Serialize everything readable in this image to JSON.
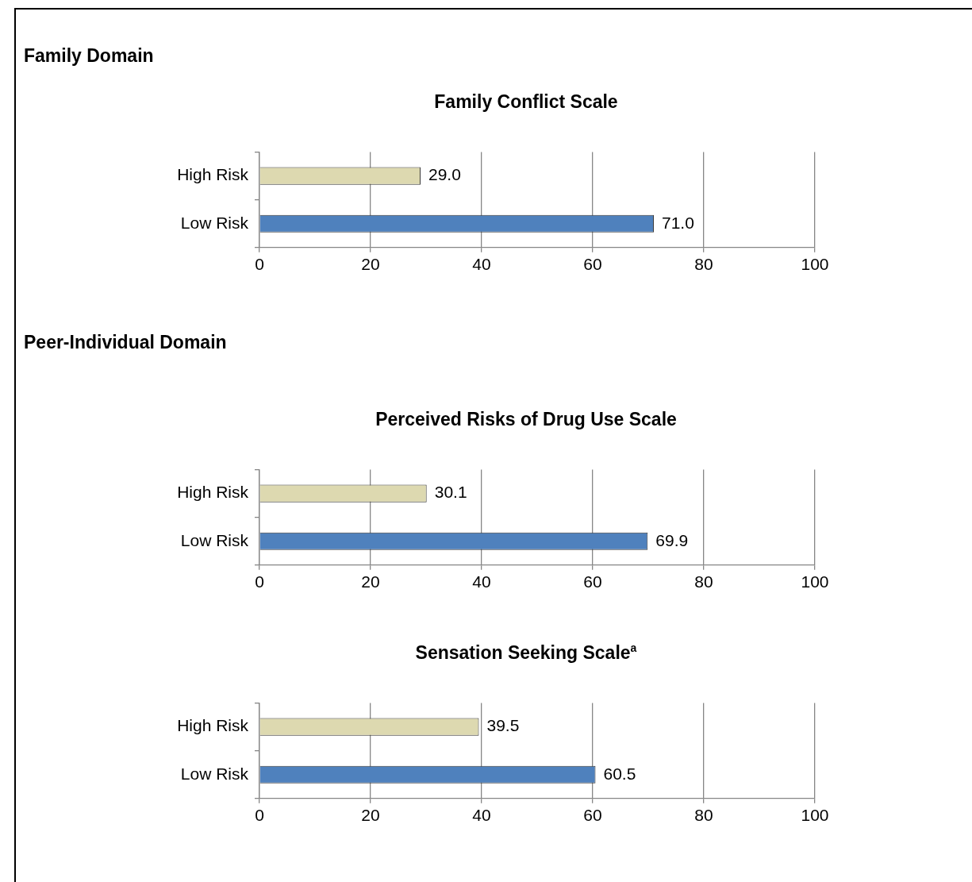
{
  "chart_data": [
    {
      "type": "bar",
      "orientation": "horizontal",
      "title": "Family Conflict Scale",
      "annotations": [
        "Family Domain"
      ],
      "categories": [
        "High Risk",
        "Low Risk"
      ],
      "values": [
        29.0,
        71.0
      ],
      "value_labels": [
        "29.0",
        "71.0"
      ],
      "colors": [
        "#ddd9b0",
        "#4f81bd"
      ],
      "xlim": [
        0,
        100
      ],
      "xticks": [
        0,
        20,
        40,
        60,
        80,
        100
      ],
      "grid": "x",
      "legend": false
    },
    {
      "type": "bar",
      "orientation": "horizontal",
      "title": "Perceived Risks of Drug Use Scale",
      "annotations": [
        "Peer-Individual Domain"
      ],
      "categories": [
        "High Risk",
        "Low Risk"
      ],
      "values": [
        30.1,
        69.9
      ],
      "value_labels": [
        "30.1",
        "69.9"
      ],
      "colors": [
        "#ddd9b0",
        "#4f81bd"
      ],
      "xlim": [
        0,
        100
      ],
      "xticks": [
        0,
        20,
        40,
        60,
        80,
        100
      ],
      "grid": "x",
      "legend": false
    },
    {
      "type": "bar",
      "orientation": "horizontal",
      "title": "Sensation Seeking Scale$^{a}$",
      "categories": [
        "High Risk",
        "Low Risk"
      ],
      "values": [
        39.5,
        60.5
      ],
      "value_labels": [
        "39.5",
        "60.5"
      ],
      "colors": [
        "#ddd9b0",
        "#4f81bd"
      ],
      "xlim": [
        0,
        100
      ],
      "xticks": [
        0,
        20,
        40,
        60,
        80,
        100
      ],
      "grid": "x",
      "legend": false
    }
  ]
}
